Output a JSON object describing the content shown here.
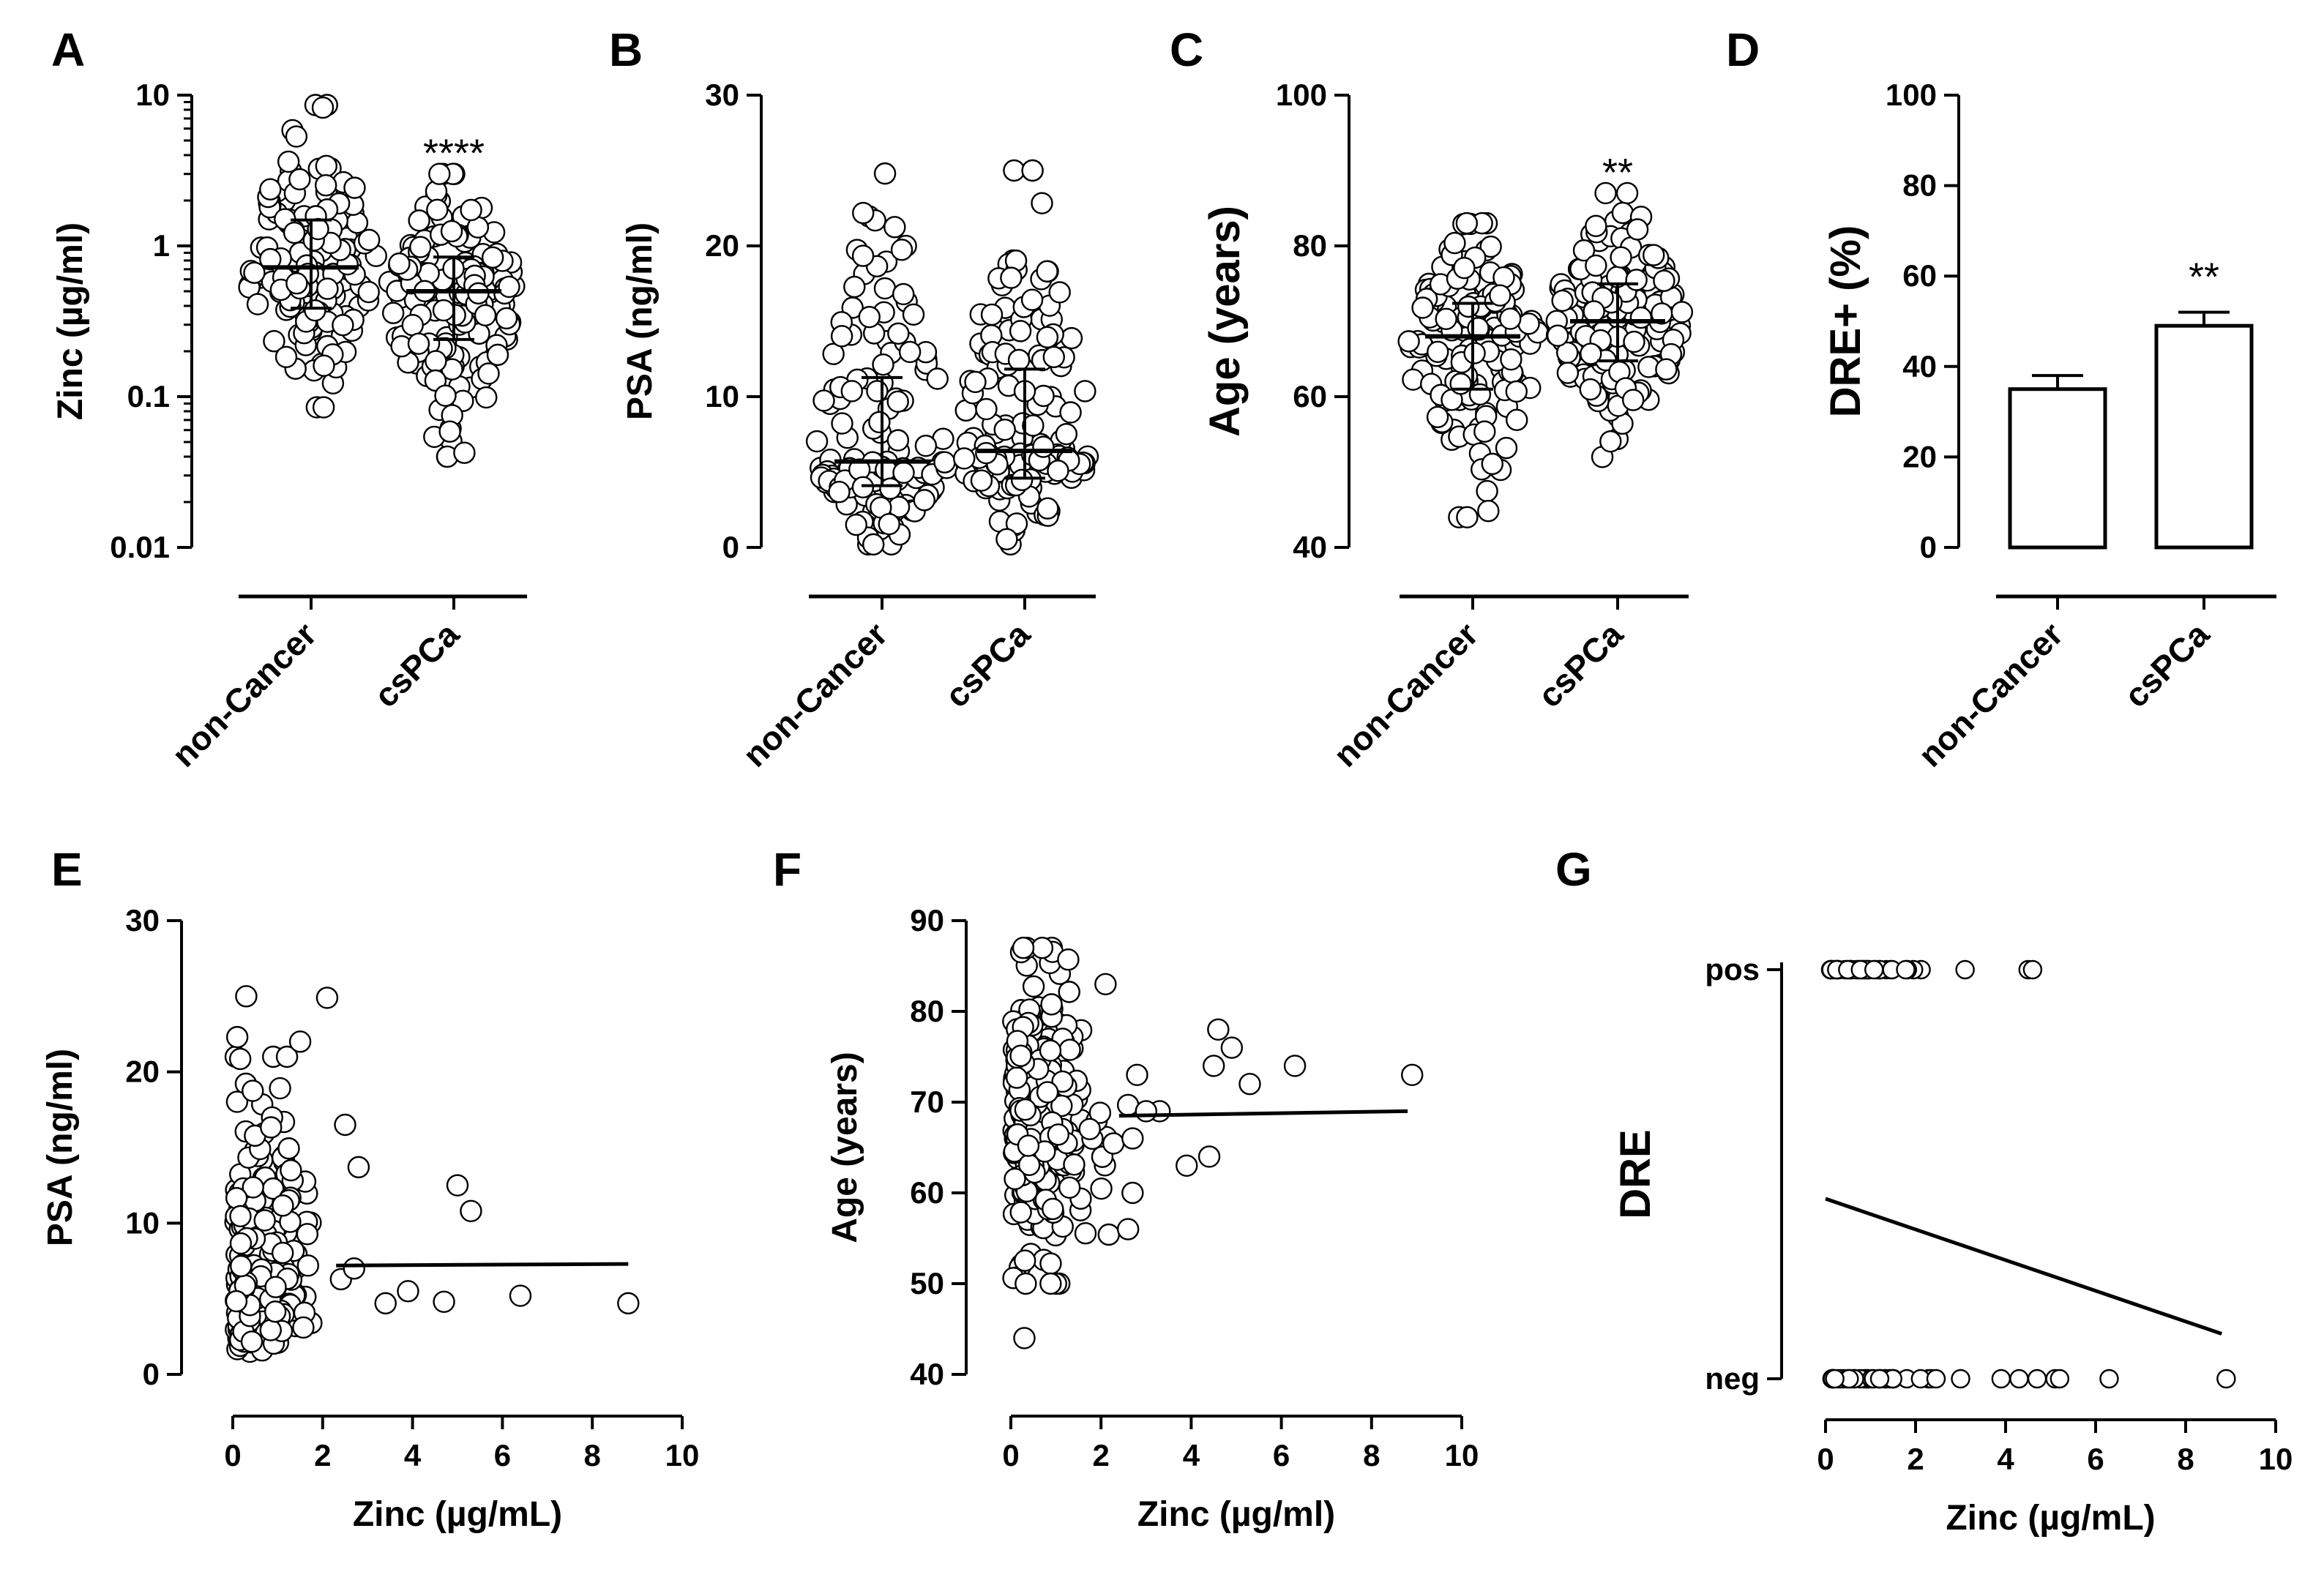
{
  "chart_data": [
    {
      "panel": "A",
      "type": "scatter",
      "ylabel": "Zinc (µg/ml)",
      "yscale": "log",
      "ylim": [
        0.01,
        10
      ],
      "yticks": [
        "0.01",
        "0.1",
        "1",
        "10"
      ],
      "categories": [
        "non-Cancer",
        "csPCa"
      ],
      "groups": [
        {
          "category": "non-Cancer",
          "median": 0.72,
          "range": [
            0.085,
            8.6
          ],
          "n": 150
        },
        {
          "category": "csPCa",
          "median": 0.5,
          "range": [
            0.04,
            3.0
          ],
          "n": 150
        }
      ],
      "significance": [
        "",
        "****"
      ]
    },
    {
      "panel": "B",
      "type": "scatter",
      "ylabel": "PSA (ng/ml)",
      "ylim": [
        0,
        30
      ],
      "yticks": [
        "0",
        "10",
        "20",
        "30"
      ],
      "categories": [
        "non-Cancer",
        "csPCa"
      ],
      "groups": [
        {
          "category": "non-Cancer",
          "median": 5.7,
          "range": [
            0.2,
            24.8
          ],
          "n": 150
        },
        {
          "category": "csPCa",
          "median": 6.4,
          "range": [
            0.2,
            25.0
          ],
          "n": 150
        }
      ],
      "significance": [
        "",
        ""
      ]
    },
    {
      "panel": "C",
      "type": "scatter",
      "ylabel": "Age (years)",
      "ylim": [
        40,
        100
      ],
      "yticks": [
        "40",
        "60",
        "80",
        "100"
      ],
      "categories": [
        "non-Cancer",
        "csPCa"
      ],
      "groups": [
        {
          "category": "non-Cancer",
          "median": 68,
          "range": [
            44,
            83
          ],
          "n": 150
        },
        {
          "category": "csPCa",
          "median": 70,
          "range": [
            52,
            87
          ],
          "n": 150
        }
      ],
      "significance": [
        "",
        "**"
      ]
    },
    {
      "panel": "D",
      "type": "bar",
      "ylabel": "DRE+ (%)",
      "ylim": [
        0,
        100
      ],
      "yticks": [
        "0",
        "20",
        "40",
        "60",
        "80",
        "100"
      ],
      "categories": [
        "non-Cancer",
        "csPCa"
      ],
      "values": [
        35,
        49
      ],
      "errors": [
        3,
        3
      ],
      "significance": [
        "",
        "**"
      ]
    },
    {
      "panel": "E",
      "type": "scatter",
      "ylabel": "PSA (ng/ml)",
      "xlabel": "Zinc (µg/mL)",
      "xlim": [
        0,
        10
      ],
      "ylim": [
        0,
        30
      ],
      "xticks": [
        "0",
        "2",
        "4",
        "6",
        "8",
        "10"
      ],
      "yticks": [
        "0",
        "10",
        "20",
        "30"
      ],
      "regression": [
        [
          2.3,
          7.2
        ],
        [
          8.8,
          7.3
        ]
      ],
      "outliers": [
        [
          0.3,
          25.0
        ],
        [
          2.1,
          24.9
        ],
        [
          1.5,
          22.0
        ],
        [
          0.1,
          22.3
        ],
        [
          5.0,
          12.5
        ],
        [
          5.3,
          10.8
        ],
        [
          2.5,
          16.5
        ],
        [
          2.8,
          13.7
        ],
        [
          6.4,
          5.2
        ],
        [
          8.8,
          4.7
        ],
        [
          4.7,
          4.8
        ],
        [
          3.9,
          5.5
        ],
        [
          3.4,
          4.7
        ],
        [
          2.7,
          7.0
        ]
      ]
    },
    {
      "panel": "F",
      "type": "scatter",
      "ylabel": "Age (years)",
      "xlabel": "Zinc (µg/ml)",
      "xlim": [
        0,
        10
      ],
      "ylim": [
        40,
        90
      ],
      "xticks": [
        "0",
        "2",
        "4",
        "6",
        "8",
        "10"
      ],
      "yticks": [
        "40",
        "50",
        "60",
        "70",
        "80",
        "90"
      ],
      "regression": [
        [
          2.4,
          68.5
        ],
        [
          8.8,
          69.0
        ]
      ],
      "outliers": [
        [
          0.3,
          44
        ],
        [
          4.6,
          78
        ],
        [
          4.9,
          76
        ],
        [
          6.3,
          74
        ],
        [
          8.9,
          73
        ],
        [
          5.3,
          72
        ],
        [
          4.5,
          74
        ],
        [
          4.4,
          64
        ],
        [
          3.9,
          63
        ],
        [
          3.3,
          69
        ],
        [
          2.8,
          73
        ],
        [
          2.7,
          66
        ],
        [
          2.7,
          60
        ],
        [
          2.6,
          56
        ],
        [
          3.0,
          69
        ],
        [
          2.1,
          83
        ]
      ]
    },
    {
      "panel": "G",
      "type": "scatter",
      "ylabel": "DRE",
      "xlabel": "Zinc (µg/mL)",
      "xlim": [
        0,
        10
      ],
      "xticks": [
        "0",
        "2",
        "4",
        "6",
        "8",
        "10"
      ],
      "ycategories": [
        "neg",
        "pos"
      ],
      "regression": [
        [
          0.0,
          0.44
        ],
        [
          8.8,
          0.11
        ]
      ],
      "pos_outliers": [
        3.1,
        4.5,
        4.6
      ],
      "neg_outliers": [
        3.0,
        3.9,
        4.3,
        4.7,
        5.1,
        5.2,
        6.3,
        8.9
      ]
    }
  ]
}
